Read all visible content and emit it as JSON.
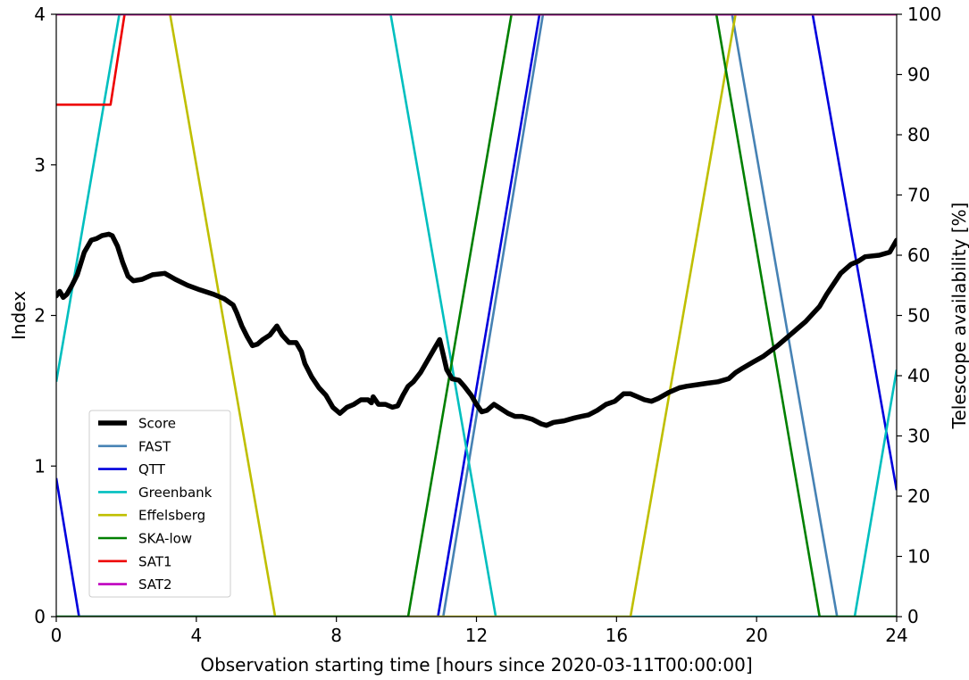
{
  "chart_data": {
    "type": "line",
    "xlabel": "Observation starting time [hours since 2020-03-11T00:00:00]",
    "ylabel_left": "Index",
    "ylabel_right": "Telescope availability [%]",
    "xlim": [
      0,
      24
    ],
    "ylim_left": [
      0,
      4
    ],
    "ylim_right": [
      0,
      100
    ],
    "xticks": [
      "0",
      "4",
      "8",
      "12",
      "16",
      "20",
      "24"
    ],
    "yticks_left": [
      "0",
      "1",
      "2",
      "3",
      "4"
    ],
    "yticks_right": [
      "0",
      "10",
      "20",
      "30",
      "40",
      "50",
      "60",
      "70",
      "80",
      "90",
      "100"
    ],
    "grid": false,
    "legend_position": "lower-left",
    "score": {
      "name": "Score",
      "color": "#000000",
      "x": [
        0,
        0.1,
        0.2,
        0.3,
        0.45,
        0.6,
        0.8,
        1.0,
        1.15,
        1.3,
        1.5,
        1.6,
        1.75,
        1.9,
        2.05,
        2.2,
        2.45,
        2.75,
        3.1,
        3.25,
        3.4,
        3.75,
        4.1,
        4.5,
        4.8,
        5.05,
        5.15,
        5.3,
        5.45,
        5.6,
        5.75,
        5.9,
        6.1,
        6.3,
        6.45,
        6.65,
        6.85,
        7.0,
        7.1,
        7.3,
        7.5,
        7.7,
        7.9,
        8.1,
        8.3,
        8.5,
        8.7,
        8.9,
        9.0,
        9.05,
        9.2,
        9.4,
        9.6,
        9.75,
        9.9,
        10.05,
        10.2,
        10.4,
        10.6,
        10.8,
        10.95,
        11.05,
        11.15,
        11.3,
        11.5,
        11.65,
        11.85,
        12.0,
        12.15,
        12.3,
        12.5,
        12.7,
        12.9,
        13.1,
        13.3,
        13.6,
        13.85,
        14.0,
        14.2,
        14.5,
        14.8,
        15.0,
        15.2,
        15.45,
        15.7,
        15.95,
        16.2,
        16.4,
        16.6,
        16.8,
        17.0,
        17.2,
        17.5,
        17.8,
        18.0,
        18.3,
        18.6,
        18.9,
        19.2,
        19.4,
        19.6,
        19.9,
        20.2,
        20.6,
        21.0,
        21.4,
        21.6,
        21.8,
        22.0,
        22.4,
        22.7,
        22.9,
        23.1,
        23.5,
        23.8,
        24.0
      ],
      "y": [
        2.13,
        2.16,
        2.12,
        2.14,
        2.2,
        2.27,
        2.42,
        2.5,
        2.51,
        2.53,
        2.54,
        2.53,
        2.46,
        2.35,
        2.26,
        2.23,
        2.24,
        2.27,
        2.28,
        2.26,
        2.24,
        2.2,
        2.17,
        2.14,
        2.11,
        2.07,
        2.02,
        1.93,
        1.86,
        1.8,
        1.81,
        1.84,
        1.87,
        1.93,
        1.87,
        1.82,
        1.82,
        1.76,
        1.68,
        1.59,
        1.52,
        1.47,
        1.39,
        1.35,
        1.39,
        1.41,
        1.44,
        1.44,
        1.42,
        1.46,
        1.41,
        1.41,
        1.39,
        1.4,
        1.47,
        1.53,
        1.56,
        1.62,
        1.7,
        1.78,
        1.84,
        1.74,
        1.64,
        1.58,
        1.57,
        1.53,
        1.47,
        1.41,
        1.36,
        1.37,
        1.41,
        1.38,
        1.35,
        1.33,
        1.33,
        1.31,
        1.28,
        1.27,
        1.29,
        1.3,
        1.32,
        1.33,
        1.34,
        1.37,
        1.41,
        1.43,
        1.48,
        1.48,
        1.46,
        1.44,
        1.43,
        1.45,
        1.49,
        1.52,
        1.53,
        1.54,
        1.55,
        1.56,
        1.58,
        1.62,
        1.65,
        1.69,
        1.73,
        1.8,
        1.88,
        1.96,
        2.01,
        2.06,
        2.14,
        2.28,
        2.34,
        2.36,
        2.39,
        2.4,
        2.42,
        2.5
      ]
    },
    "availability": [
      {
        "name": "FAST",
        "color": "#4682b4",
        "x": [
          0,
          11.05,
          13.9,
          19.3,
          22.3,
          24
        ],
        "y": [
          0,
          0,
          100,
          100,
          0,
          0
        ]
      },
      {
        "name": "QTT",
        "color": "#0000dd",
        "x": [
          0,
          0.65,
          10.9,
          13.8,
          21.6,
          24
        ],
        "y": [
          23,
          0,
          0,
          100,
          100,
          21
        ]
      },
      {
        "name": "Greenbank",
        "color": "#00bfbf",
        "x": [
          0,
          1.8,
          9.55,
          12.55,
          22.8,
          24
        ],
        "y": [
          39,
          100,
          100,
          0,
          0,
          41
        ]
      },
      {
        "name": "Effelsberg",
        "color": "#bfbf00",
        "x": [
          0,
          3.25,
          6.25,
          16.4,
          19.4,
          24
        ],
        "y": [
          100,
          100,
          0,
          0,
          100,
          100
        ]
      },
      {
        "name": "SKA-low",
        "color": "#008000",
        "x": [
          0,
          10.05,
          13.0,
          18.85,
          21.8,
          24
        ],
        "y": [
          0,
          0,
          100,
          100,
          0,
          0
        ]
      },
      {
        "name": "SAT1",
        "color": "#ee0000",
        "x": [
          0,
          1.55,
          1.95,
          24
        ],
        "y": [
          85,
          85,
          100,
          100
        ]
      },
      {
        "name": "SAT2",
        "color": "#bf00bf",
        "x": [
          0,
          24
        ],
        "y": [
          100,
          100
        ]
      }
    ],
    "legend": [
      "Score",
      "FAST",
      "QTT",
      "Greenbank",
      "Effelsberg",
      "SKA-low",
      "SAT1",
      "SAT2"
    ]
  }
}
